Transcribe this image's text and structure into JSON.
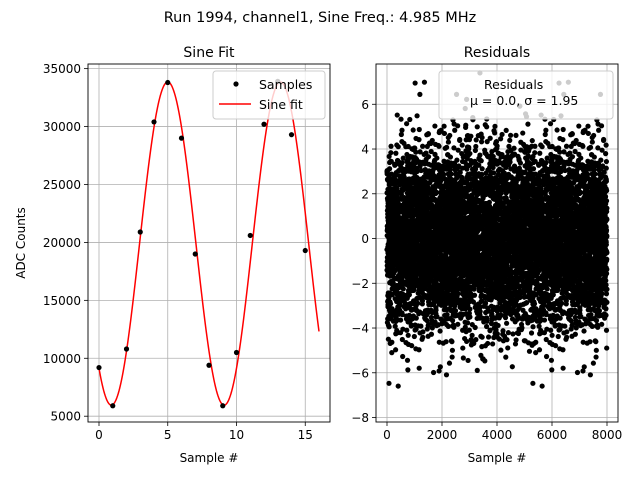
{
  "suptitle": "Run 1994, channel1, Sine Freq.: 4.985 MHz",
  "colors": {
    "samples": "#000000",
    "fit": "#ff0000",
    "grid": "#b0b0b0"
  },
  "chart_data": [
    {
      "type": "line",
      "title": "Sine Fit",
      "xlabel": "Sample #",
      "ylabel": "ADC Counts",
      "xlim": [
        -0.8,
        16.8
      ],
      "ylim": [
        4500,
        35400
      ],
      "xticks": [
        0,
        5,
        10,
        15
      ],
      "yticks": [
        5000,
        10000,
        15000,
        20000,
        25000,
        30000,
        35000
      ],
      "grid": true,
      "legend_position": "top-right",
      "series": [
        {
          "name": "Samples",
          "kind": "scatter",
          "x": [
            0,
            1,
            2,
            3,
            4,
            5,
            6,
            7,
            8,
            9,
            10,
            11,
            12,
            13,
            14,
            15
          ],
          "y": [
            9200,
            5900,
            10800,
            20900,
            30400,
            33800,
            29000,
            19000,
            9400,
            5900,
            10500,
            20600,
            30200,
            33900,
            29300,
            19300
          ]
        },
        {
          "name": "Sine fit",
          "kind": "line",
          "fit": {
            "offset": 19900,
            "amplitude": 13950,
            "period": 8.2,
            "phase_sample": 5.0,
            "x_range": [
              0,
              16
            ]
          }
        }
      ]
    },
    {
      "type": "scatter",
      "title": "Residuals",
      "xlabel": "Sample #",
      "ylabel": "",
      "xlim": [
        -400,
        8400
      ],
      "ylim": [
        -8.2,
        7.8
      ],
      "xticks": [
        0,
        2000,
        4000,
        6000,
        8000
      ],
      "yticks": [
        -8,
        -6,
        -4,
        -2,
        0,
        2,
        4,
        6
      ],
      "grid": true,
      "legend_position": "top-right",
      "series": [
        {
          "name": "Residuals\nμ = 0.0, σ = 1.95",
          "kind": "scatter",
          "n_points": 8000,
          "x_range": [
            0,
            8000
          ],
          "mean": 0.0,
          "std": 1.95
        }
      ]
    }
  ]
}
